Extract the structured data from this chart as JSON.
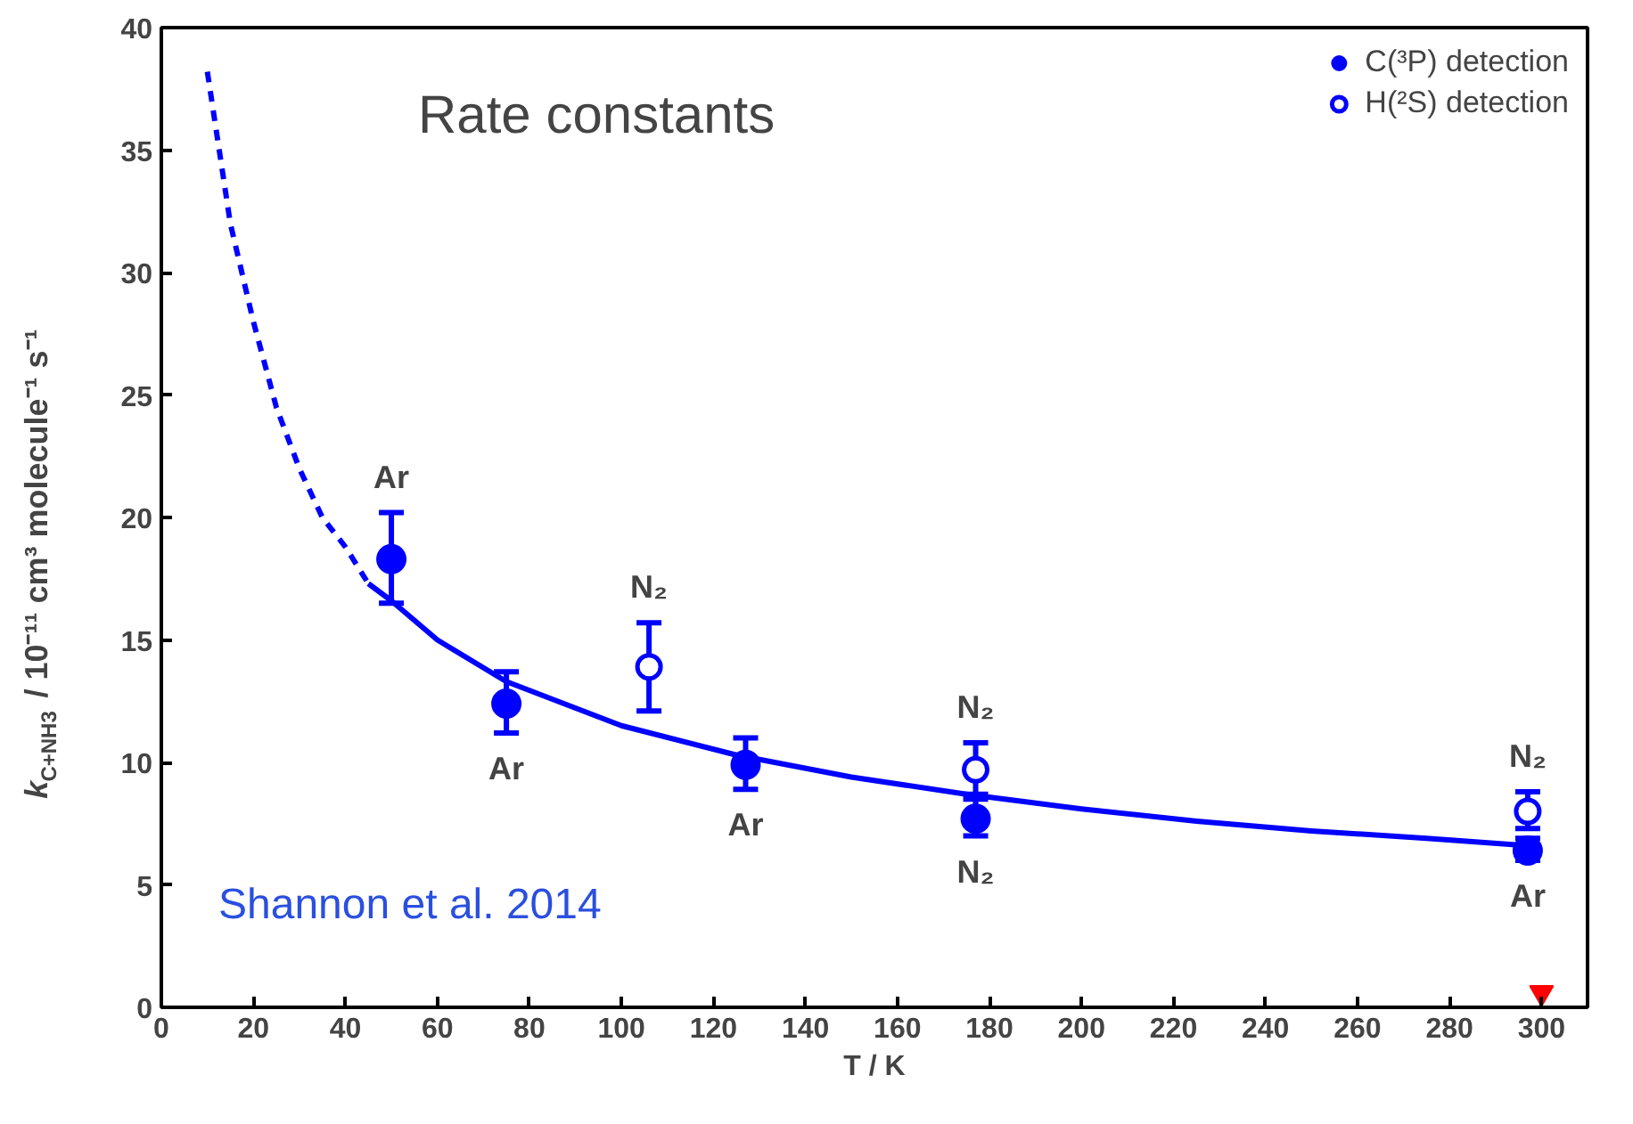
{
  "chart_data": {
    "type": "scatter",
    "title": "Rate constants",
    "xlabel": "T / K",
    "ylabel": "k$_{C+NH3}$ / 10⁻¹¹ cm³ molecule⁻¹ s⁻¹",
    "xlim": [
      0,
      310
    ],
    "ylim": [
      0,
      40
    ],
    "xticks": [
      0,
      20,
      40,
      60,
      80,
      100,
      120,
      140,
      160,
      180,
      200,
      220,
      240,
      260,
      280,
      300
    ],
    "yticks": [
      0,
      5,
      10,
      15,
      20,
      25,
      30,
      35,
      40
    ],
    "grid": false,
    "legend": "top right",
    "series": [
      {
        "name": "C(³P) detection",
        "color": "#0000ff",
        "marker": "circle",
        "x": [
          50,
          75,
          127,
          177,
          297
        ],
        "values": [
          18.3,
          12.4,
          9.9,
          7.7,
          6.4
        ],
        "errors": [
          [
            16.5,
            20.2
          ],
          [
            11.2,
            13.7
          ],
          [
            8.9,
            11.0
          ],
          [
            7.0,
            8.5
          ],
          [
            6.0,
            6.9
          ]
        ]
      },
      {
        "name": "H(²S) detection",
        "color": "#0000ff",
        "marker": "circle_open",
        "x": [
          106,
          177,
          297
        ],
        "values": [
          13.9,
          9.7,
          8.0
        ],
        "errors": [
          [
            12.1,
            15.7
          ],
          [
            8.7,
            10.8
          ],
          [
            7.3,
            8.8
          ]
        ]
      },
      {
        "type": "line",
        "color": "#0000ff",
        "line_style": "solid",
        "x": [
          45,
          50,
          60,
          75,
          100,
          125,
          150,
          175,
          200,
          225,
          250,
          275,
          297
        ],
        "values": [
          17.3,
          16.6,
          15.0,
          13.3,
          11.5,
          10.3,
          9.4,
          8.7,
          8.1,
          7.6,
          7.2,
          6.9,
          6.6
        ]
      },
      {
        "type": "line",
        "color": "#0000ff",
        "line_style": "dashed",
        "x": [
          10,
          15,
          20,
          25,
          30,
          35,
          40,
          45
        ],
        "values": [
          38.2,
          32.0,
          28.0,
          24.5,
          22.0,
          20.0,
          18.8,
          17.3
        ]
      },
      {
        "color": "#ff0000",
        "marker": "triangle",
        "x": [
          300
        ],
        "values": [
          0.6
        ]
      }
    ],
    "annotations": [
      {
        "text": "Ar",
        "x": 50,
        "y": 18.3
      },
      {
        "text": "Ar",
        "x": 75,
        "y": 12.4
      },
      {
        "text": "N₂",
        "x": 106,
        "y": 13.9
      },
      {
        "text": "Ar",
        "x": 127,
        "y": 9.9
      },
      {
        "text": "N₂",
        "x": 177,
        "y": 9.7
      },
      {
        "text": "N₂",
        "x": 177,
        "y": 7.7
      },
      {
        "text": "N₂",
        "x": 297,
        "y": 8.0
      },
      {
        "text": "Ar",
        "x": 297,
        "y": 6.4
      },
      "Shannon et al. 2014"
    ]
  }
}
